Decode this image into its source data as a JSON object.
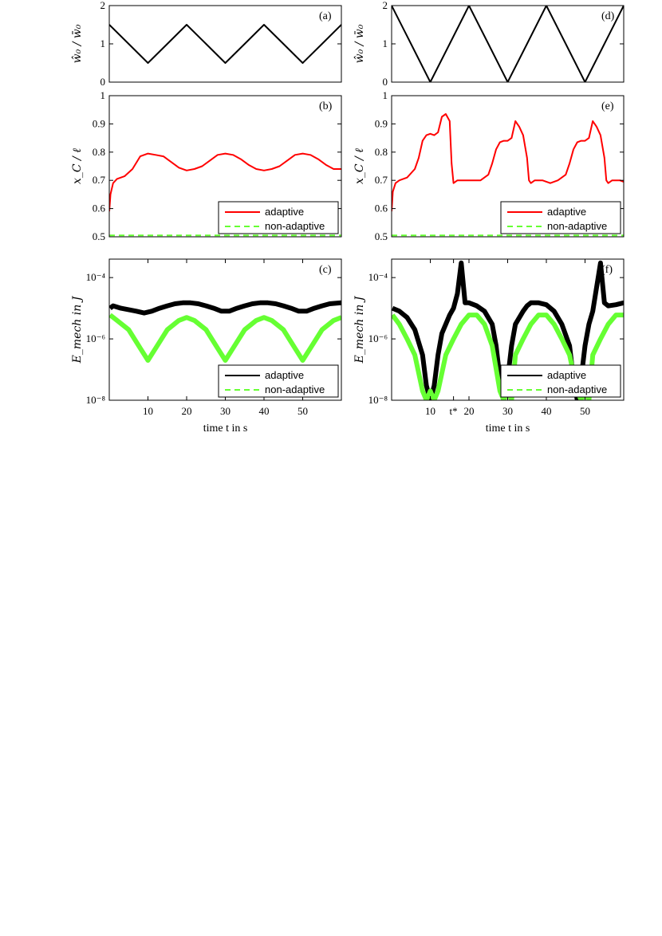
{
  "chart_data": [
    {
      "id": "a",
      "panel_label": "(a)",
      "type": "line",
      "ylabel": "ŵ₀ / w̄₀",
      "xlabel": "",
      "xlim": [
        0,
        60
      ],
      "ylim": [
        0,
        2
      ],
      "yticks": [
        0,
        1,
        2
      ],
      "ytick_labels": [
        "0",
        "1",
        "2"
      ],
      "xticks": [],
      "xtick_labels": [],
      "yscale": "linear",
      "legend": null,
      "series": [
        {
          "color": "#000000",
          "style": "solid",
          "x": [
            0,
            5,
            10,
            15,
            20,
            25,
            30,
            35,
            40,
            45,
            50,
            55,
            60
          ],
          "y": [
            1.5,
            1.0,
            0.5,
            1.0,
            1.5,
            1.0,
            0.5,
            1.0,
            1.5,
            1.0,
            0.5,
            1.0,
            1.5
          ]
        }
      ]
    },
    {
      "id": "b",
      "panel_label": "(b)",
      "type": "line",
      "ylabel": "x_C / ℓ",
      "xlabel": "",
      "xlim": [
        0,
        60
      ],
      "ylim": [
        0.5,
        1.0
      ],
      "yticks": [
        0.5,
        0.6,
        0.7,
        0.8,
        0.9,
        1.0
      ],
      "ytick_labels": [
        "0.5",
        "0.6",
        "0.7",
        "0.8",
        "0.9",
        "1"
      ],
      "xticks": [],
      "xtick_labels": [],
      "yscale": "linear",
      "legend": "bottom-right",
      "series": [
        {
          "name": "adaptive",
          "color": "#ff0000",
          "style": "solid",
          "x": [
            0,
            0.3,
            1,
            2,
            4,
            6,
            8,
            10,
            12,
            14,
            16,
            18,
            20,
            22,
            24,
            26,
            28,
            30,
            32,
            34,
            36,
            38,
            40,
            42,
            44,
            46,
            48,
            50,
            52,
            54,
            56,
            58,
            60
          ],
          "y": [
            0.59,
            0.65,
            0.69,
            0.705,
            0.715,
            0.74,
            0.785,
            0.795,
            0.79,
            0.785,
            0.765,
            0.745,
            0.735,
            0.74,
            0.75,
            0.77,
            0.79,
            0.795,
            0.79,
            0.775,
            0.755,
            0.74,
            0.735,
            0.74,
            0.75,
            0.77,
            0.79,
            0.795,
            0.79,
            0.775,
            0.755,
            0.74,
            0.74
          ]
        },
        {
          "name": "non-adaptive",
          "color": "#66ff33",
          "style": "dashed",
          "x": [
            0,
            60
          ],
          "y": [
            0.505,
            0.505
          ]
        }
      ]
    },
    {
      "id": "c",
      "panel_label": "(c)",
      "type": "line",
      "ylabel": "E_mech in J",
      "xlabel": "time t in s",
      "xlim": [
        0,
        60
      ],
      "ylim": [
        1e-08,
        0.0004
      ],
      "yticks": [
        1e-08,
        1e-06,
        0.0001
      ],
      "ytick_labels": [
        "10⁻⁸",
        "10⁻⁶",
        "10⁻⁴"
      ],
      "xticks": [
        10,
        20,
        30,
        40,
        50
      ],
      "xtick_labels": [
        "10",
        "20",
        "30",
        "40",
        "50"
      ],
      "yscale": "log",
      "legend": "bottom-right",
      "series": [
        {
          "name": "adaptive",
          "color": "#000000",
          "style": "solid",
          "x": [
            0.2,
            1,
            3,
            5,
            7,
            9,
            11,
            13,
            15,
            17,
            19,
            21,
            23,
            25,
            27,
            29,
            31,
            33,
            35,
            37,
            39,
            41,
            43,
            45,
            47,
            49,
            51,
            53,
            55,
            57,
            60
          ],
          "y": [
            1e-05,
            1.2e-05,
            1e-05,
            9e-06,
            8e-06,
            7e-06,
            8e-06,
            1e-05,
            1.2e-05,
            1.4e-05,
            1.5e-05,
            1.5e-05,
            1.4e-05,
            1.2e-05,
            1e-05,
            8e-06,
            8e-06,
            1e-05,
            1.2e-05,
            1.4e-05,
            1.5e-05,
            1.5e-05,
            1.4e-05,
            1.2e-05,
            1e-05,
            8e-06,
            8e-06,
            1e-05,
            1.2e-05,
            1.4e-05,
            1.5e-05
          ]
        },
        {
          "name": "non-adaptive",
          "color": "#66ff33",
          "style": "dashed",
          "x": [
            0.2,
            2,
            5,
            8,
            10,
            12,
            15,
            18,
            20,
            22,
            25,
            28,
            30,
            32,
            35,
            38,
            40,
            42,
            45,
            48,
            50,
            52,
            55,
            58,
            60
          ],
          "y": [
            6e-06,
            4e-06,
            2e-06,
            5e-07,
            2e-07,
            5e-07,
            2e-06,
            4e-06,
            5e-06,
            4e-06,
            2e-06,
            5e-07,
            2e-07,
            5e-07,
            2e-06,
            4e-06,
            5e-06,
            4e-06,
            2e-06,
            5e-07,
            2e-07,
            5e-07,
            2e-06,
            4e-06,
            5e-06
          ]
        }
      ]
    },
    {
      "id": "d",
      "panel_label": "(d)",
      "type": "line",
      "ylabel": "ŵ₀ / w̄₀",
      "xlabel": "",
      "xlim": [
        0,
        60
      ],
      "ylim": [
        0,
        2
      ],
      "yticks": [
        0,
        1,
        2
      ],
      "ytick_labels": [
        "0",
        "1",
        "2"
      ],
      "xticks": [],
      "xtick_labels": [],
      "yscale": "linear",
      "legend": null,
      "series": [
        {
          "color": "#000000",
          "style": "solid",
          "x": [
            0,
            5,
            10,
            15,
            20,
            25,
            30,
            35,
            40,
            45,
            50,
            55,
            60
          ],
          "y": [
            2.0,
            1.0,
            0.0,
            1.0,
            2.0,
            1.0,
            0.0,
            1.0,
            2.0,
            1.0,
            0.0,
            1.0,
            2.0
          ]
        }
      ]
    },
    {
      "id": "e",
      "panel_label": "(e)",
      "type": "line",
      "ylabel": "x_C / ℓ",
      "xlabel": "",
      "xlim": [
        0,
        60
      ],
      "ylim": [
        0.5,
        1.0
      ],
      "yticks": [
        0.5,
        0.6,
        0.7,
        0.8,
        0.9,
        1.0
      ],
      "ytick_labels": [
        "0.5",
        "0.6",
        "0.7",
        "0.8",
        "0.9",
        "1"
      ],
      "xticks": [],
      "xtick_labels": [],
      "yscale": "linear",
      "legend": "bottom-right",
      "series": [
        {
          "name": "adaptive",
          "color": "#ff0000",
          "style": "solid",
          "x": [
            0,
            0.3,
            1,
            2,
            4,
            6,
            7,
            8,
            9,
            10,
            11,
            12,
            13,
            14,
            15,
            15.5,
            16,
            17,
            19,
            21,
            23,
            25,
            26,
            27,
            28,
            29,
            30,
            31,
            32,
            33,
            34,
            35,
            35.5,
            36,
            37,
            39,
            41,
            43,
            45,
            46,
            47,
            48,
            49,
            50,
            51,
            52,
            53,
            54,
            55,
            55.5,
            56,
            57,
            59,
            60
          ],
          "y": [
            0.59,
            0.66,
            0.69,
            0.7,
            0.71,
            0.74,
            0.78,
            0.84,
            0.86,
            0.865,
            0.86,
            0.87,
            0.925,
            0.935,
            0.91,
            0.76,
            0.69,
            0.7,
            0.7,
            0.7,
            0.7,
            0.72,
            0.76,
            0.81,
            0.835,
            0.84,
            0.84,
            0.85,
            0.91,
            0.89,
            0.86,
            0.78,
            0.7,
            0.69,
            0.7,
            0.7,
            0.69,
            0.7,
            0.72,
            0.76,
            0.81,
            0.835,
            0.84,
            0.84,
            0.85,
            0.91,
            0.89,
            0.86,
            0.78,
            0.7,
            0.69,
            0.7,
            0.7,
            0.695
          ]
        },
        {
          "name": "non-adaptive",
          "color": "#66ff33",
          "style": "dashed",
          "x": [
            0,
            60
          ],
          "y": [
            0.505,
            0.505
          ]
        }
      ]
    },
    {
      "id": "f",
      "panel_label": "(f)",
      "type": "line",
      "ylabel": "E_mech in J",
      "xlabel": "time t in s",
      "xlim": [
        0,
        60
      ],
      "ylim": [
        1e-08,
        0.0004
      ],
      "yticks": [
        1e-08,
        1e-06,
        0.0001
      ],
      "ytick_labels": [
        "10⁻⁸",
        "10⁻⁶",
        "10⁻⁴"
      ],
      "xticks": [
        10,
        16,
        20,
        30,
        40,
        50
      ],
      "xtick_labels": [
        "10",
        "t*",
        "20",
        "30",
        "40",
        "50"
      ],
      "yscale": "log",
      "legend": "bottom-right",
      "series": [
        {
          "name": "adaptive",
          "color": "#000000",
          "style": "solid",
          "x": [
            0.2,
            2,
            4,
            6,
            8,
            9,
            10,
            11,
            12,
            13,
            14,
            15,
            16,
            17,
            18,
            19,
            20,
            22,
            24,
            26,
            27,
            28,
            29,
            30,
            31,
            32,
            34,
            35,
            36,
            38,
            40,
            42,
            44,
            46,
            47,
            48,
            49,
            50,
            51,
            52,
            54,
            55,
            56,
            58,
            60
          ],
          "y": [
            1e-05,
            8e-06,
            5e-06,
            2e-06,
            3e-07,
            3e-08,
            1e-08,
            3e-08,
            3e-07,
            1.5e-06,
            3e-06,
            6e-06,
            1e-05,
            3e-05,
            0.0003,
            1.5e-05,
            1.5e-05,
            1.2e-05,
            8e-06,
            3e-06,
            6e-07,
            5e-08,
            1e-08,
            5e-08,
            6e-07,
            3e-06,
            8e-06,
            1.2e-05,
            1.5e-05,
            1.5e-05,
            1.3e-05,
            8e-06,
            3e-06,
            6e-07,
            5e-08,
            1e-08,
            5e-08,
            6e-07,
            3e-06,
            8e-06,
            0.0003,
            1.5e-05,
            1.2e-05,
            1.3e-05,
            1.5e-05
          ]
        },
        {
          "name": "non-adaptive",
          "color": "#66ff33",
          "style": "dashed",
          "x": [
            0.2,
            2,
            4,
            6,
            8,
            9,
            10,
            11,
            12,
            14,
            16,
            18,
            20,
            22,
            24,
            26,
            28,
            29,
            30,
            31,
            32,
            34,
            36,
            38,
            40,
            42,
            44,
            46,
            48,
            49,
            50,
            51,
            52,
            54,
            56,
            58,
            60
          ],
          "y": [
            6e-06,
            3e-06,
            1e-06,
            3e-07,
            2e-08,
            1e-08,
            2e-08,
            1e-08,
            2e-08,
            3e-07,
            1e-06,
            3e-06,
            6e-06,
            6e-06,
            3e-06,
            6e-07,
            2e-08,
            1e-08,
            2e-08,
            1e-08,
            3e-07,
            1e-06,
            3e-06,
            6e-06,
            6e-06,
            3e-06,
            1e-06,
            3e-07,
            2e-08,
            1e-08,
            2e-08,
            1e-08,
            3e-07,
            1e-06,
            3e-06,
            6e-06,
            6e-06
          ]
        }
      ]
    }
  ]
}
